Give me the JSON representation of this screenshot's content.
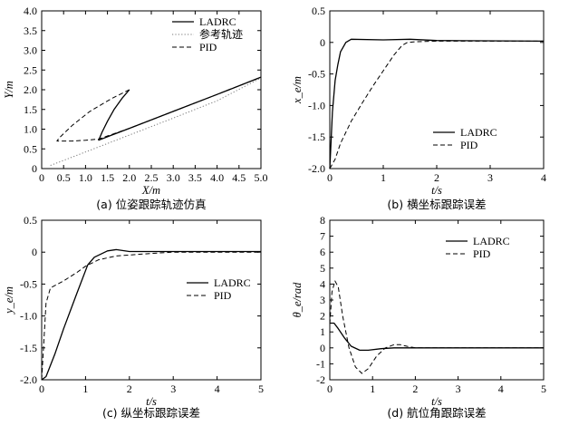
{
  "figure": {
    "panels": [
      {
        "id": "a",
        "caption": "(a) 位姿跟踪轨迹仿真",
        "xlabel": "X/m",
        "ylabel": "Y/m",
        "xlim": [
          0,
          5
        ],
        "ylim": [
          0,
          4
        ],
        "xticks": [
          "0",
          "0.5",
          "1.0",
          "1.5",
          "2.0",
          "2.5",
          "3.0",
          "3.5",
          "4.0",
          "4.5",
          "5.0"
        ],
        "yticks": [
          "0",
          "0.5",
          "1.0",
          "1.5",
          "2.0",
          "2.5",
          "3.0",
          "3.5",
          "4.0"
        ],
        "legend": [
          "LADRC",
          "参考轨迹",
          "PID"
        ]
      },
      {
        "id": "b",
        "caption": "(b) 横坐标跟踪误差",
        "xlabel": "t/s",
        "ylabel": "x_e/m",
        "xlim": [
          0,
          4
        ],
        "ylim": [
          -2,
          0.5
        ],
        "xticks": [
          "0",
          "1",
          "2",
          "3",
          "4"
        ],
        "yticks": [
          "-2.0",
          "-1.5",
          "-1.0",
          "-0.5",
          "0",
          "0.5"
        ],
        "legend": [
          "LADRC",
          "PID"
        ]
      },
      {
        "id": "c",
        "caption": "(c) 纵坐标跟踪误差",
        "xlabel": "t/s",
        "ylabel": "y_e/m",
        "xlim": [
          0,
          5
        ],
        "ylim": [
          -2,
          0.5
        ],
        "xticks": [
          "0",
          "1",
          "2",
          "3",
          "4",
          "5"
        ],
        "yticks": [
          "-2.0",
          "-1.5",
          "-1.0",
          "-0.5",
          "0",
          "0.5"
        ],
        "legend": [
          "LADRC",
          "PID"
        ]
      },
      {
        "id": "d",
        "caption": "(d) 航位角跟踪误差",
        "xlabel": "t/s",
        "ylabel": "θ_e/rad",
        "xlim": [
          0,
          5
        ],
        "ylim": [
          -2,
          8
        ],
        "xticks": [
          "0",
          "1",
          "2",
          "3",
          "4",
          "5"
        ],
        "yticks": [
          "-2",
          "-1",
          "0",
          "1",
          "2",
          "3",
          "4",
          "5",
          "6",
          "7",
          "8"
        ],
        "legend": [
          "LADRC",
          "PID"
        ]
      }
    ]
  },
  "chart_data": [
    {
      "type": "line",
      "panel": "a",
      "xlabel": "X/m",
      "ylabel": "Y/m",
      "xlim": [
        0,
        5
      ],
      "ylim": [
        0,
        4
      ],
      "series": [
        {
          "name": "LADRC",
          "style": "solid",
          "points": [
            [
              2.0,
              2.0
            ],
            [
              1.83,
              1.78
            ],
            [
              1.65,
              1.5
            ],
            [
              1.5,
              1.2
            ],
            [
              1.38,
              0.93
            ],
            [
              1.3,
              0.72
            ],
            [
              1.6,
              0.85
            ],
            [
              2.0,
              1.02
            ],
            [
              3.0,
              1.45
            ],
            [
              4.0,
              1.88
            ],
            [
              5.0,
              2.32
            ]
          ]
        },
        {
          "name": "参考轨迹",
          "style": "dotted",
          "points": [
            [
              0.2,
              0.08
            ],
            [
              1.0,
              0.42
            ],
            [
              1.3,
              0.55
            ],
            [
              2.0,
              0.85
            ],
            [
              3.0,
              1.28
            ],
            [
              4.0,
              1.72
            ],
            [
              5.0,
              2.3
            ]
          ]
        },
        {
          "name": "PID",
          "style": "dashed",
          "points": [
            [
              2.0,
              2.0
            ],
            [
              1.6,
              1.78
            ],
            [
              1.1,
              1.45
            ],
            [
              0.7,
              1.1
            ],
            [
              0.4,
              0.78
            ],
            [
              0.35,
              0.7
            ],
            [
              0.7,
              0.7
            ],
            [
              1.0,
              0.72
            ],
            [
              1.3,
              0.75
            ],
            [
              2.0,
              1.02
            ],
            [
              3.0,
              1.45
            ],
            [
              4.0,
              1.88
            ],
            [
              5.0,
              2.32
            ]
          ]
        }
      ]
    },
    {
      "type": "line",
      "panel": "b",
      "xlabel": "t/s",
      "ylabel": "x_e/m",
      "xlim": [
        0,
        4
      ],
      "ylim": [
        -2,
        0.5
      ],
      "series": [
        {
          "name": "LADRC",
          "style": "solid",
          "points": [
            [
              0,
              -2.0
            ],
            [
              0.05,
              -1.1
            ],
            [
              0.1,
              -0.6
            ],
            [
              0.15,
              -0.35
            ],
            [
              0.2,
              -0.15
            ],
            [
              0.3,
              0.0
            ],
            [
              0.4,
              0.05
            ],
            [
              1.0,
              0.04
            ],
            [
              1.5,
              0.05
            ],
            [
              2.0,
              0.03
            ],
            [
              4.0,
              0.02
            ]
          ]
        },
        {
          "name": "PID",
          "style": "dashed",
          "points": [
            [
              0,
              -2.0
            ],
            [
              0.1,
              -1.85
            ],
            [
              0.2,
              -1.6
            ],
            [
              0.4,
              -1.25
            ],
            [
              0.6,
              -0.97
            ],
            [
              0.8,
              -0.7
            ],
            [
              1.0,
              -0.45
            ],
            [
              1.2,
              -0.2
            ],
            [
              1.35,
              -0.05
            ],
            [
              1.45,
              0.0
            ],
            [
              1.6,
              0.01
            ],
            [
              2.0,
              0.02
            ],
            [
              4.0,
              0.02
            ]
          ]
        }
      ]
    },
    {
      "type": "line",
      "panel": "c",
      "xlabel": "t/s",
      "ylabel": "y_e/m",
      "xlim": [
        0,
        5
      ],
      "ylim": [
        -2,
        0.5
      ],
      "series": [
        {
          "name": "LADRC",
          "style": "solid",
          "points": [
            [
              0,
              -2.0
            ],
            [
              0.1,
              -1.95
            ],
            [
              0.3,
              -1.6
            ],
            [
              0.5,
              -1.2
            ],
            [
              0.8,
              -0.65
            ],
            [
              1.05,
              -0.2
            ],
            [
              1.2,
              -0.08
            ],
            [
              1.5,
              0.02
            ],
            [
              1.7,
              0.04
            ],
            [
              2.0,
              0.01
            ],
            [
              3.0,
              0.01
            ],
            [
              5.0,
              0.01
            ]
          ]
        },
        {
          "name": "PID",
          "style": "dashed",
          "points": [
            [
              0,
              -2.0
            ],
            [
              0.05,
              -1.4
            ],
            [
              0.1,
              -0.8
            ],
            [
              0.2,
              -0.56
            ],
            [
              0.5,
              -0.45
            ],
            [
              0.8,
              -0.32
            ],
            [
              1.0,
              -0.22
            ],
            [
              1.3,
              -0.12
            ],
            [
              1.7,
              -0.06
            ],
            [
              2.5,
              -0.02
            ],
            [
              3.0,
              0.0
            ],
            [
              5.0,
              0.0
            ]
          ]
        }
      ]
    },
    {
      "type": "line",
      "panel": "d",
      "xlabel": "t/s",
      "ylabel": "θ_e/rad",
      "xlim": [
        0,
        5
      ],
      "ylim": [
        -2,
        8
      ],
      "series": [
        {
          "name": "LADRC",
          "style": "solid",
          "points": [
            [
              0,
              1.55
            ],
            [
              0.1,
              1.55
            ],
            [
              0.2,
              1.2
            ],
            [
              0.35,
              0.6
            ],
            [
              0.5,
              0.1
            ],
            [
              0.7,
              -0.15
            ],
            [
              0.9,
              -0.15
            ],
            [
              1.2,
              -0.05
            ],
            [
              1.5,
              0.0
            ],
            [
              2.0,
              0.0
            ],
            [
              5.0,
              0.0
            ]
          ]
        },
        {
          "name": "PID",
          "style": "dashed",
          "points": [
            [
              0,
              1.5
            ],
            [
              0.05,
              3.5
            ],
            [
              0.12,
              4.2
            ],
            [
              0.2,
              3.8
            ],
            [
              0.3,
              2.0
            ],
            [
              0.45,
              0.0
            ],
            [
              0.6,
              -1.2
            ],
            [
              0.75,
              -1.6
            ],
            [
              0.9,
              -1.3
            ],
            [
              1.1,
              -0.5
            ],
            [
              1.3,
              0.0
            ],
            [
              1.5,
              0.2
            ],
            [
              1.65,
              0.2
            ],
            [
              1.8,
              0.1
            ],
            [
              2.0,
              0.0
            ],
            [
              5.0,
              0.0
            ]
          ]
        }
      ]
    }
  ]
}
